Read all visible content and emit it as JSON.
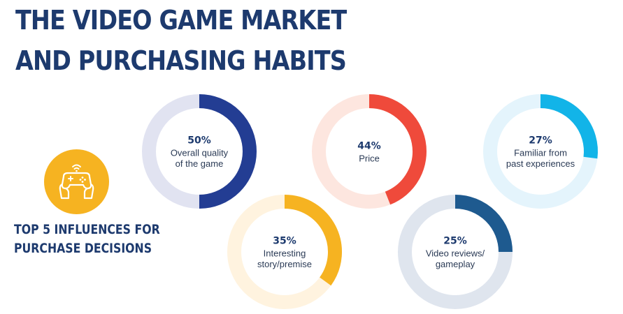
{
  "header": {
    "title_line1": "THE VIDEO GAME MARKET",
    "title_line2": "AND PURCHASING HABITS"
  },
  "section": {
    "subtitle_line1": "TOP 5 INFLUENCES FOR",
    "subtitle_line2": "PURCHASE DECISIONS",
    "icon": "gamepad-hands-icon"
  },
  "colors": {
    "title": "#1d3a6e",
    "icon_bg": "#f6b321"
  },
  "chart_data": {
    "type": "donut",
    "title": "TOP 5 INFLUENCES FOR PURCHASE DECISIONS",
    "items": [
      {
        "label": "Overall quality of the game",
        "pct_text": "50%",
        "value": 50,
        "label_lines": [
          "Overall quality",
          "of the game"
        ],
        "color": "#233d93",
        "track": "#e1e3f1"
      },
      {
        "label": "Price",
        "pct_text": "44%",
        "value": 44,
        "label_lines": [
          "Price"
        ],
        "color": "#ef4a3b",
        "track": "#fde6df"
      },
      {
        "label": "Familiar from past experiences",
        "pct_text": "27%",
        "value": 27,
        "label_lines": [
          "Familiar from",
          "past experiences"
        ],
        "color": "#12b4e8",
        "track": "#e4f4fc"
      },
      {
        "label": "Interesting story/premise",
        "pct_text": "35%",
        "value": 35,
        "label_lines": [
          "Interesting",
          "story/premise"
        ],
        "color": "#f6b321",
        "track": "#fff3df"
      },
      {
        "label": "Video reviews/ gameplay",
        "pct_text": "25%",
        "value": 25,
        "label_lines": [
          "Video reviews/",
          "gameplay"
        ],
        "color": "#1e5a8f",
        "track": "#dfe5ee"
      }
    ]
  }
}
